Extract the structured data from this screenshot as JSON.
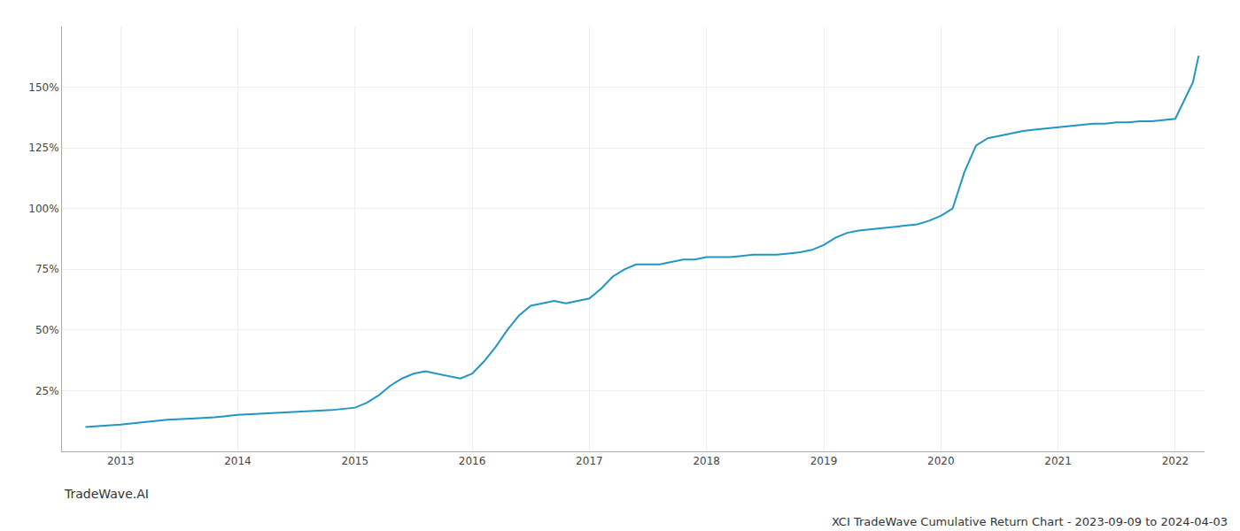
{
  "chart_data": {
    "type": "line",
    "title": "XCI TradeWave Cumulative Return Chart - 2023-09-09 to 2024-04-03",
    "annotations": [
      "TradeWave.AI"
    ],
    "x": [
      2012.7,
      2013.0,
      2013.2,
      2013.4,
      2013.6,
      2013.8,
      2014.0,
      2014.2,
      2014.4,
      2014.6,
      2014.8,
      2015.0,
      2015.1,
      2015.2,
      2015.3,
      2015.4,
      2015.5,
      2015.6,
      2015.7,
      2015.8,
      2015.9,
      2016.0,
      2016.1,
      2016.2,
      2016.3,
      2016.4,
      2016.5,
      2016.6,
      2016.7,
      2016.8,
      2016.9,
      2017.0,
      2017.1,
      2017.2,
      2017.3,
      2017.4,
      2017.5,
      2017.6,
      2017.7,
      2017.8,
      2017.9,
      2018.0,
      2018.1,
      2018.2,
      2018.3,
      2018.4,
      2018.5,
      2018.6,
      2018.7,
      2018.8,
      2018.9,
      2019.0,
      2019.1,
      2019.2,
      2019.3,
      2019.4,
      2019.5,
      2019.6,
      2019.7,
      2019.8,
      2019.9,
      2020.0,
      2020.1,
      2020.2,
      2020.3,
      2020.4,
      2020.5,
      2020.6,
      2020.7,
      2020.8,
      2020.9,
      2021.0,
      2021.1,
      2021.2,
      2021.3,
      2021.4,
      2021.5,
      2021.6,
      2021.7,
      2021.8,
      2021.9,
      2022.0,
      2022.05,
      2022.15,
      2022.2
    ],
    "values": [
      10,
      11,
      12,
      13,
      13.5,
      14,
      15,
      15.5,
      16,
      16.5,
      17,
      18,
      20,
      23,
      27,
      30,
      32,
      33,
      32,
      31,
      30,
      32,
      37,
      43,
      50,
      56,
      60,
      61,
      62,
      61,
      62,
      63,
      67,
      72,
      75,
      77,
      77,
      77,
      78,
      79,
      79,
      80,
      80,
      80,
      80.5,
      81,
      81,
      81,
      81.5,
      82,
      83,
      85,
      88,
      90,
      91,
      91.5,
      92,
      92.5,
      93,
      93.5,
      95,
      97,
      100,
      115,
      126,
      129,
      130,
      131,
      132,
      132.5,
      133,
      133.5,
      134,
      134.5,
      135,
      135,
      135.5,
      135.5,
      136,
      136,
      136.5,
      137,
      142,
      152,
      163
    ],
    "color": "#2196c4",
    "xlim": [
      2012.5,
      2022.25
    ],
    "xticks": [
      2013,
      2014,
      2015,
      2016,
      2017,
      2018,
      2019,
      2020,
      2021,
      2022
    ],
    "ylim": [
      0,
      175
    ],
    "yticks": [
      {
        "value": 25,
        "label": "25%"
      },
      {
        "value": 50,
        "label": "50%"
      },
      {
        "value": 75,
        "label": "75%"
      },
      {
        "value": 100,
        "label": "100%"
      },
      {
        "value": 125,
        "label": "125%"
      },
      {
        "value": 150,
        "label": "150%"
      }
    ],
    "grid": true
  }
}
